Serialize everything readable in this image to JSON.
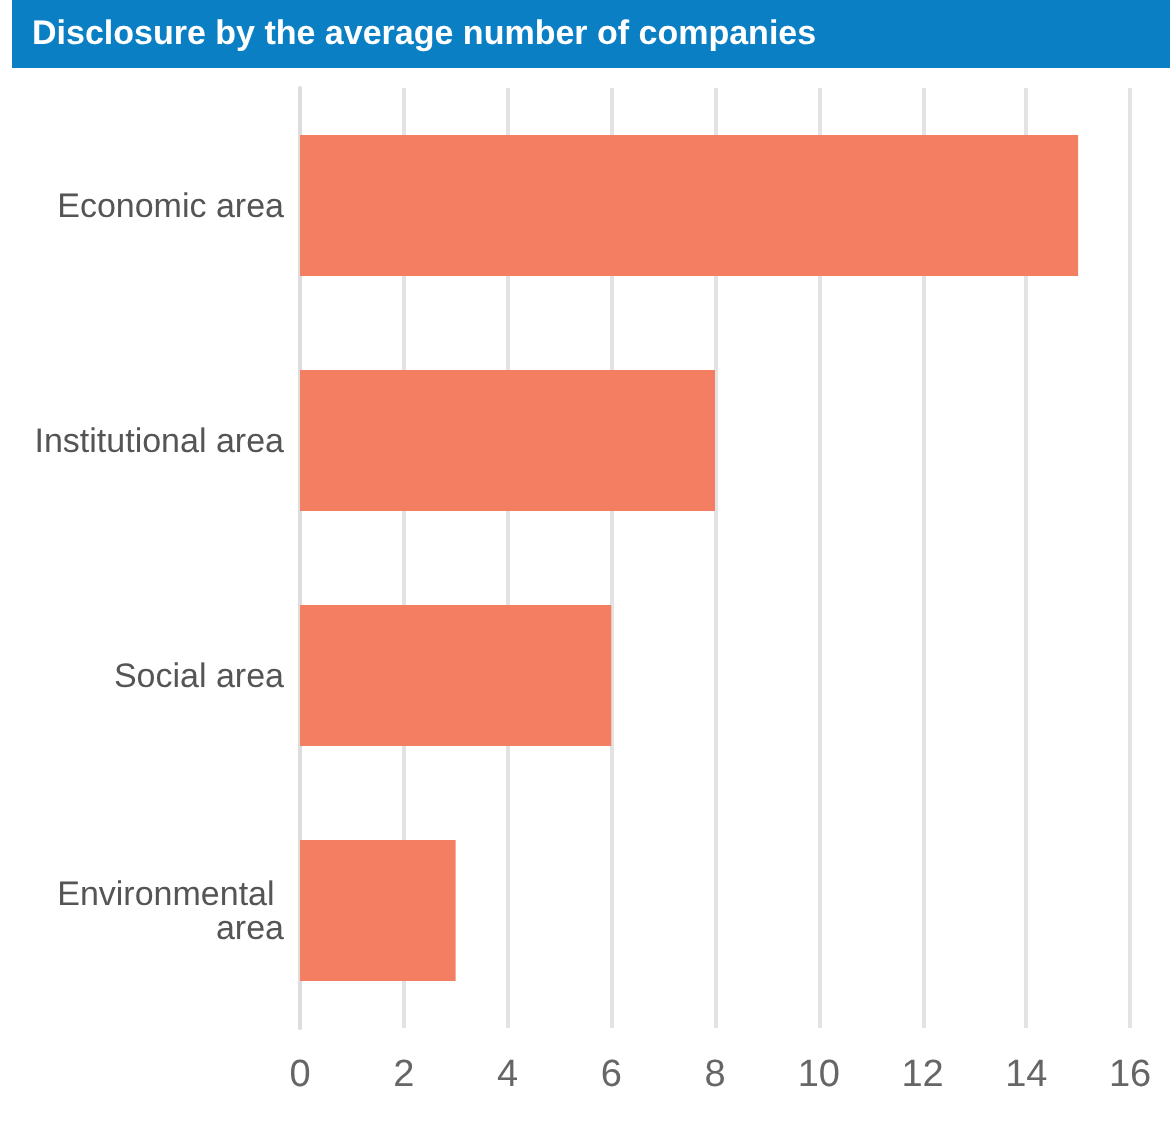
{
  "chart_data": {
    "type": "bar",
    "orientation": "horizontal",
    "title": "Disclosure by the average number of companies",
    "categories": [
      "Economic area",
      "Institutional area",
      "Social area",
      "Environmental area"
    ],
    "values": [
      15,
      8,
      6,
      3
    ],
    "color": "#f47e62",
    "xlim": [
      0,
      16
    ],
    "xticks": [
      0,
      2,
      4,
      6,
      8,
      10,
      12,
      14,
      16
    ],
    "grid": "x"
  }
}
